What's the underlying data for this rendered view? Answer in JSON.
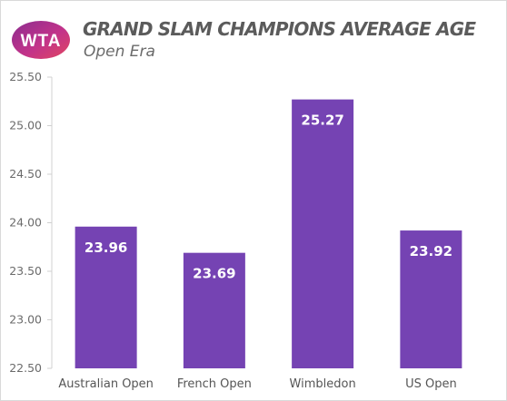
{
  "logo": {
    "text": "WTA",
    "icon": "wta-logo-icon",
    "colors": [
      "#8c2d8f",
      "#c2338a",
      "#e04560"
    ]
  },
  "header": {
    "title": "GRAND SLAM CHAMPIONS AVERAGE AGE",
    "subtitle": "Open Era"
  },
  "colors": {
    "bar": "#7543b3",
    "axis": "#d0d0d0",
    "tick_text": "#6b6b6b"
  },
  "chart_data": {
    "type": "bar",
    "title": "GRAND SLAM CHAMPIONS AVERAGE AGE",
    "subtitle": "Open Era",
    "categories": [
      "Australian Open",
      "French Open",
      "Wimbledon",
      "US Open"
    ],
    "values": [
      23.96,
      23.69,
      25.27,
      23.92
    ],
    "data_labels": [
      "23.96",
      "23.69",
      "25.27",
      "23.92"
    ],
    "ylim": [
      22.5,
      25.5
    ],
    "yticks": [
      "22.50",
      "23.00",
      "23.50",
      "24.00",
      "24.50",
      "25.00",
      "25.50"
    ],
    "ytick_values": [
      22.5,
      23.0,
      23.5,
      24.0,
      24.5,
      25.0,
      25.5
    ],
    "xlabel": "",
    "ylabel": "",
    "grid": false,
    "legend": "none"
  }
}
